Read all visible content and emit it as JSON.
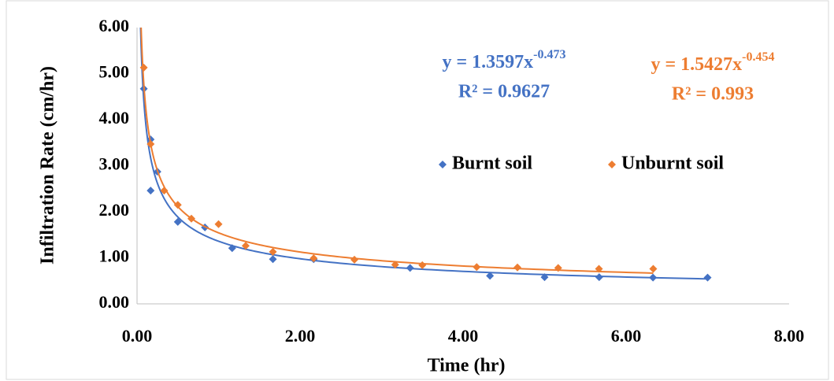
{
  "chart_data": {
    "type": "scatter",
    "xlabel": "Time (hr)",
    "ylabel": "Infiltration Rate (cm/hr)",
    "xlim": [
      0,
      8
    ],
    "ylim": [
      0,
      6
    ],
    "xticks": [
      {
        "value": 0,
        "label": "0.00"
      },
      {
        "value": 2,
        "label": "2.00"
      },
      {
        "value": 4,
        "label": "4.00"
      },
      {
        "value": 6,
        "label": "6.00"
      },
      {
        "value": 8,
        "label": "8.00"
      }
    ],
    "yticks": [
      {
        "value": 0,
        "label": "0.00"
      },
      {
        "value": 1,
        "label": "1.00"
      },
      {
        "value": 2,
        "label": "2.00"
      },
      {
        "value": 3,
        "label": "3.00"
      },
      {
        "value": 4,
        "label": "4.00"
      },
      {
        "value": 5,
        "label": "5.00"
      },
      {
        "value": 6,
        "label": "6.00"
      }
    ],
    "grid": false,
    "legend": "center-right",
    "series": [
      {
        "name": "Burnt soil",
        "color": "#4472c4",
        "x": [
          0.083,
          0.167,
          0.167,
          0.25,
          0.5,
          0.833,
          1.167,
          1.667,
          2.167,
          3.35,
          4.33,
          5.0,
          5.67,
          6.33,
          7.0
        ],
        "values": [
          4.67,
          3.57,
          2.46,
          2.87,
          1.78,
          1.66,
          1.21,
          0.97,
          0.97,
          0.78,
          0.61,
          0.58,
          0.58,
          0.57,
          0.57
        ],
        "trend_coef": 1.3597,
        "trend_exp": -0.473,
        "equation": "y = 1.3597x",
        "equation_exponent": "-0.473",
        "r2_label": "R² = 0.9627"
      },
      {
        "name": "Unburnt soil",
        "color": "#ed7d31",
        "x": [
          0.083,
          0.167,
          0.333,
          0.5,
          0.667,
          1.0,
          1.333,
          1.667,
          2.167,
          2.667,
          3.167,
          3.5,
          4.167,
          4.667,
          5.167,
          5.667,
          6.333
        ],
        "values": [
          5.13,
          3.47,
          2.46,
          2.15,
          1.85,
          1.73,
          1.26,
          1.13,
          0.99,
          0.96,
          0.85,
          0.84,
          0.8,
          0.79,
          0.78,
          0.76,
          0.76
        ],
        "trend_coef": 1.5427,
        "trend_exp": -0.454,
        "equation": "y = 1.5427x",
        "equation_exponent": "-0.454",
        "r2_label": "R² = 0.993"
      }
    ]
  }
}
